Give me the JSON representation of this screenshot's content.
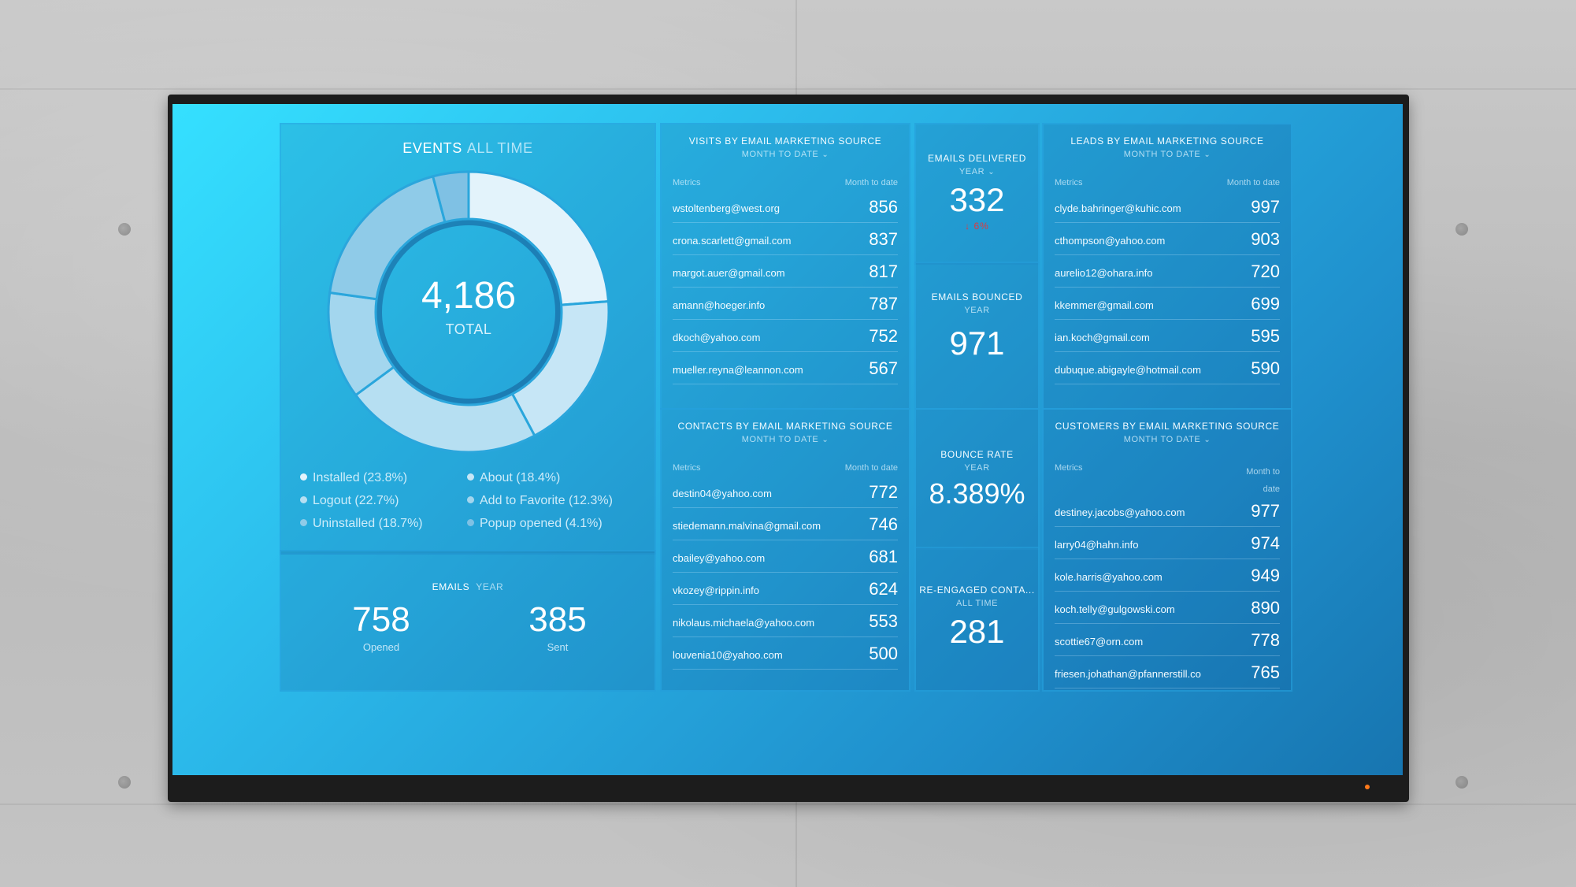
{
  "events": {
    "title": "EVENTS",
    "range": "ALL TIME",
    "total_value": "4,186",
    "total_label": "TOTAL",
    "segments": [
      {
        "label": "Installed (23.8%)",
        "percent": 23.8,
        "color": "#e3f3fb"
      },
      {
        "label": "About (18.4%)",
        "percent": 18.4,
        "color": "#c6e6f6"
      },
      {
        "label": "Logout (22.7%)",
        "percent": 22.7,
        "color": "#b6dff2"
      },
      {
        "label": "Add to Favorite (12.3%)",
        "percent": 12.3,
        "color": "#a3d6ee"
      },
      {
        "label": "Uninstalled (18.7%)",
        "percent": 18.7,
        "color": "#8fcbe8"
      },
      {
        "label": "Popup opened (4.1%)",
        "percent": 4.1,
        "color": "#7fc1e4"
      }
    ],
    "legend": [
      "Installed (23.8%)",
      "About (18.4%)",
      "Logout (22.7%)",
      "Add to Favorite (12.3%)",
      "Uninstalled (18.7%)",
      "Popup opened (4.1%)"
    ]
  },
  "emails": {
    "title": "EMAILS",
    "range": "YEAR",
    "opened_value": "758",
    "opened_label": "Opened",
    "sent_value": "385",
    "sent_label": "Sent"
  },
  "visits": {
    "title": "VISITS BY EMAIL MARKETING SOURCE",
    "range": "MONTH TO DATE",
    "col_metrics": "Metrics",
    "col_value": "Month to date",
    "rows": [
      {
        "email": "wstoltenberg@west.org",
        "value": "856"
      },
      {
        "email": "crona.scarlett@gmail.com",
        "value": "837"
      },
      {
        "email": "margot.auer@gmail.com",
        "value": "817"
      },
      {
        "email": "amann@hoeger.info",
        "value": "787"
      },
      {
        "email": "dkoch@yahoo.com",
        "value": "752"
      },
      {
        "email": "mueller.reyna@leannon.com",
        "value": "567"
      }
    ]
  },
  "contacts": {
    "title": "CONTACTS BY EMAIL MARKETING SOURCE",
    "range": "MONTH TO DATE",
    "col_metrics": "Metrics",
    "col_value": "Month to date",
    "rows": [
      {
        "email": "destin04@yahoo.com",
        "value": "772"
      },
      {
        "email": "stiedemann.malvina@gmail.com",
        "value": "746"
      },
      {
        "email": "cbailey@yahoo.com",
        "value": "681"
      },
      {
        "email": "vkozey@rippin.info",
        "value": "624"
      },
      {
        "email": "nikolaus.michaela@yahoo.com",
        "value": "553"
      },
      {
        "email": "louvenia10@yahoo.com",
        "value": "500"
      }
    ]
  },
  "delivered": {
    "title": "EMAILS DELIVERED",
    "range": "YEAR",
    "value": "332",
    "delta": "↓ 6%"
  },
  "bounced": {
    "title": "EMAILS BOUNCED",
    "range": "YEAR",
    "value": "971"
  },
  "bounce_rate": {
    "title": "BOUNCE RATE",
    "range": "YEAR",
    "value": "8.389%"
  },
  "reengaged": {
    "title": "RE-ENGAGED CONTA...",
    "range": "ALL TIME",
    "value": "281"
  },
  "leads": {
    "title": "LEADS BY EMAIL MARKETING SOURCE",
    "range": "MONTH TO DATE",
    "col_metrics": "Metrics",
    "col_value": "Month to date",
    "rows": [
      {
        "email": "clyde.bahringer@kuhic.com",
        "value": "997"
      },
      {
        "email": "cthompson@yahoo.com",
        "value": "903"
      },
      {
        "email": "aurelio12@ohara.info",
        "value": "720"
      },
      {
        "email": "kkemmer@gmail.com",
        "value": "699"
      },
      {
        "email": "ian.koch@gmail.com",
        "value": "595"
      },
      {
        "email": "dubuque.abigayle@hotmail.com",
        "value": "590"
      }
    ]
  },
  "customers": {
    "title": "CUSTOMERS BY EMAIL MARKETING SOURCE",
    "range": "MONTH TO DATE",
    "col_metrics": "Metrics",
    "col_value_line1": "Month to",
    "col_value_line2": "date",
    "rows": [
      {
        "email": "destiney.jacobs@yahoo.com",
        "value": "977"
      },
      {
        "email": "larry04@hahn.info",
        "value": "974"
      },
      {
        "email": "kole.harris@yahoo.com",
        "value": "949"
      },
      {
        "email": "koch.telly@gulgowski.com",
        "value": "890"
      },
      {
        "email": "scottie67@orn.com",
        "value": "778"
      },
      {
        "email": "friesen.johathan@pfannerstill.co",
        "value": "765"
      }
    ]
  }
}
